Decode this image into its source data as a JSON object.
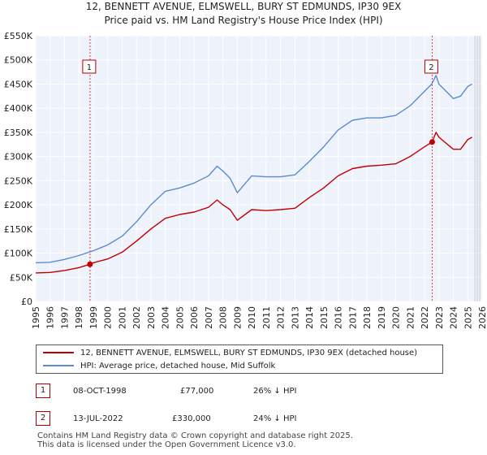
{
  "header": {
    "title_line1": "12, BENNETT AVENUE, ELMSWELL, BURY ST EDMUNDS, IP30 9EX",
    "title_line2": "Price paid vs. HM Land Registry's House Price Index (HPI)"
  },
  "chart_data": {
    "type": "line",
    "y_ticks": [
      "£0",
      "£50K",
      "£100K",
      "£150K",
      "£200K",
      "£250K",
      "£300K",
      "£350K",
      "£400K",
      "£450K",
      "£500K",
      "£550K"
    ],
    "x_ticks": [
      "1995",
      "1996",
      "1997",
      "1998",
      "1999",
      "2000",
      "2001",
      "2002",
      "2003",
      "2004",
      "2005",
      "2006",
      "2007",
      "2008",
      "2009",
      "2010",
      "2011",
      "2012",
      "2013",
      "2014",
      "2015",
      "2016",
      "2017",
      "2018",
      "2019",
      "2020",
      "2021",
      "2022",
      "2023",
      "2024",
      "2025",
      "2026"
    ],
    "xlim": [
      1995,
      2026
    ],
    "ylim": [
      0,
      550000
    ],
    "series": [
      {
        "name": "12, BENNETT AVENUE, ELMSWELL, BURY ST EDMUNDS, IP30 9EX (detached house)",
        "color": "#c00000",
        "x": [
          1995,
          1996,
          1997,
          1998,
          1998.77,
          1999,
          2000,
          2001,
          2002,
          2003,
          2004,
          2005,
          2006,
          2007,
          2007.6,
          2008,
          2008.5,
          2009,
          2010,
          2011,
          2012,
          2013,
          2014,
          2015,
          2016,
          2017,
          2018,
          2019,
          2020,
          2021,
          2022,
          2022.53,
          2022.8,
          2023,
          2024,
          2024.5,
          2025,
          2025.3
        ],
        "values": [
          59000,
          60000,
          64000,
          70000,
          77000,
          80000,
          88000,
          102000,
          125000,
          150000,
          172000,
          180000,
          185000,
          195000,
          210000,
          200000,
          190000,
          168000,
          190000,
          188000,
          190000,
          193000,
          215000,
          235000,
          260000,
          275000,
          280000,
          282000,
          285000,
          300000,
          320000,
          330000,
          350000,
          340000,
          315000,
          315000,
          335000,
          340000
        ]
      },
      {
        "name": "HPI: Average price, detached house, Mid Suffolk",
        "color": "#5b8bd0",
        "x": [
          1995,
          1996,
          1997,
          1998,
          1999,
          2000,
          2001,
          2002,
          2003,
          2004,
          2005,
          2006,
          2007,
          2007.6,
          2008,
          2008.5,
          2009,
          2010,
          2011,
          2012,
          2013,
          2014,
          2015,
          2016,
          2017,
          2018,
          2019,
          2020,
          2021,
          2022,
          2022.5,
          2022.8,
          2023,
          2024,
          2024.5,
          2025,
          2025.3
        ],
        "values": [
          80000,
          81000,
          87000,
          95000,
          105000,
          117000,
          135000,
          165000,
          200000,
          228000,
          235000,
          245000,
          260000,
          280000,
          270000,
          255000,
          225000,
          260000,
          258000,
          258000,
          262000,
          290000,
          320000,
          355000,
          375000,
          380000,
          380000,
          385000,
          405000,
          435000,
          450000,
          468000,
          450000,
          420000,
          425000,
          445000,
          450000
        ]
      }
    ],
    "annotations": [
      {
        "label": "1",
        "x": 1998.77
      },
      {
        "label": "2",
        "x": 2022.53
      }
    ],
    "sale_points": [
      {
        "x": 1998.77,
        "y": 77000
      },
      {
        "x": 2022.53,
        "y": 330000
      }
    ]
  },
  "legend": {
    "property_label": "12, BENNETT AVENUE, ELMSWELL, BURY ST EDMUNDS, IP30 9EX (detached house)",
    "hpi_label": "HPI: Average price, detached house, Mid Suffolk"
  },
  "transactions": [
    {
      "num": "1",
      "date": "08-OCT-1998",
      "price": "£77,000",
      "delta": "26% ↓ HPI"
    },
    {
      "num": "2",
      "date": "13-JUL-2022",
      "price": "£330,000",
      "delta": "24% ↓ HPI"
    }
  ],
  "footer": {
    "line1": "Contains HM Land Registry data © Crown copyright and database right 2025.",
    "line2": "This data is licensed under the Open Government Licence v3.0."
  },
  "colors": {
    "property": "#c00000",
    "hpi": "#5b8bd0",
    "plot_bg": "#eef2fb",
    "grid": "#ffffff"
  }
}
